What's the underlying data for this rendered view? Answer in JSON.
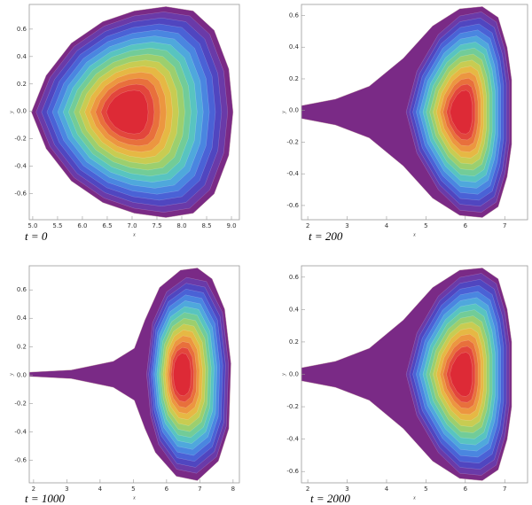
{
  "chart_data": [
    {
      "type": "contour",
      "caption": "t = 0",
      "xlabel": "x",
      "ylabel": "y",
      "xlim": [
        4.93,
        9.16
      ],
      "ylim": [
        -0.79,
        0.78
      ],
      "xticks": [
        {
          "value": 5,
          "label": "5.0"
        },
        5.5,
        {
          "value": 6,
          "label": "6.0"
        },
        6.5,
        {
          "value": 7,
          "label": "7.0"
        },
        7.5,
        {
          "value": 8,
          "label": "8.0"
        },
        8.5,
        {
          "value": 9,
          "label": "9.0"
        }
      ],
      "yticks": [
        -0.6,
        -0.4,
        -0.2,
        {
          "value": 0,
          "label": "0.0"
        },
        0.2,
        0.4,
        0.6
      ]
    },
    {
      "type": "contour",
      "caption": "t = 200",
      "xlabel": "x",
      "ylabel": "y",
      "xlim": [
        1.84,
        7.58
      ],
      "ylim": [
        -0.69,
        0.67
      ],
      "xticks": [
        2,
        3,
        4,
        5,
        6,
        7
      ],
      "yticks": [
        -0.6,
        -0.4,
        -0.2,
        {
          "value": 0,
          "label": "0.0"
        },
        0.2,
        0.4,
        0.6
      ]
    },
    {
      "type": "contour",
      "caption": "t = 1000",
      "xlabel": "x",
      "ylabel": "y",
      "xlim": [
        1.87,
        8.19
      ],
      "ylim": [
        -0.76,
        0.77
      ],
      "xticks": [
        2,
        3,
        4,
        5,
        6,
        7,
        8
      ],
      "yticks": [
        -0.6,
        -0.4,
        -0.2,
        {
          "value": 0,
          "label": "0.0"
        },
        0.2,
        0.4,
        0.6
      ]
    },
    {
      "type": "contour",
      "caption": "t = 2000",
      "xlabel": "x",
      "ylabel": "y",
      "xlim": [
        1.84,
        7.58
      ],
      "ylim": [
        -0.67,
        0.67
      ],
      "xticks": [
        2,
        3,
        4,
        5,
        6,
        7
      ],
      "yticks": [
        -0.6,
        -0.4,
        -0.2,
        {
          "value": 0,
          "label": "0.0"
        },
        0.2,
        0.4,
        0.6
      ]
    }
  ]
}
